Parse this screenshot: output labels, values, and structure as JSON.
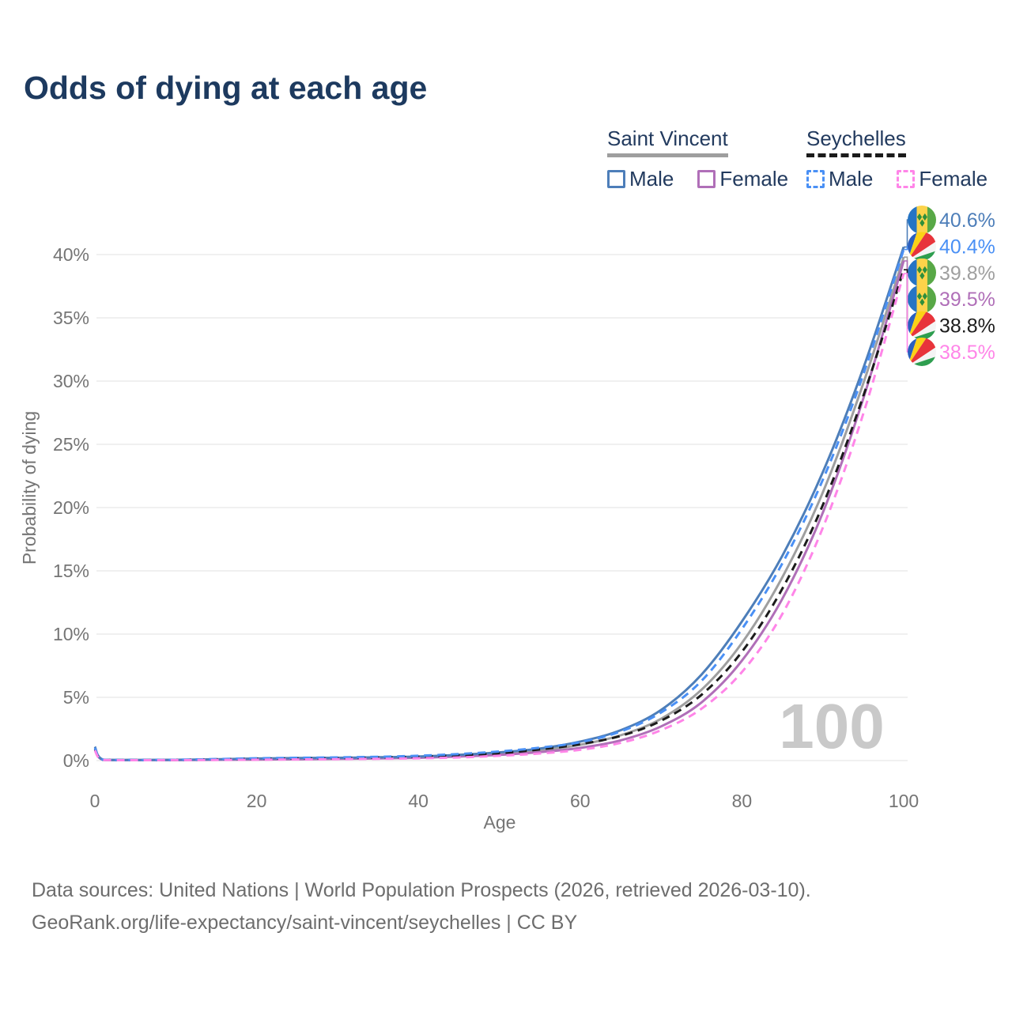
{
  "page": {
    "title": "Odds of dying at each age"
  },
  "legend": {
    "groups": [
      {
        "title": "Saint Vincent",
        "line_style": "solid",
        "line_color": "#9e9e9e",
        "items": [
          {
            "label": "Male",
            "color": "#4d7eb9",
            "style": "solid"
          },
          {
            "label": "Female",
            "color": "#b06fb8",
            "style": "solid"
          }
        ]
      },
      {
        "title": "Seychelles",
        "line_style": "dashed",
        "line_color": "#1b1b1b",
        "items": [
          {
            "label": "Male",
            "color": "#4a90f5",
            "style": "dashed"
          },
          {
            "label": "Female",
            "color": "#ff85e8",
            "style": "dashed"
          }
        ]
      }
    ]
  },
  "chart_data": {
    "type": "line",
    "title": "Odds of dying at each age",
    "xlabel": "Age",
    "ylabel": "Probability of dying",
    "xlim": [
      0,
      100
    ],
    "ylim_pct": [
      0,
      42
    ],
    "grid": "horizontal-only",
    "watermark": "100",
    "x_ticks": [
      "0",
      "20",
      "40",
      "60",
      "80",
      "100"
    ],
    "y_ticks": [
      {
        "pct": 0,
        "label": "0%"
      },
      {
        "pct": 5,
        "label": "5%"
      },
      {
        "pct": 10,
        "label": "10%"
      },
      {
        "pct": 15,
        "label": "15%"
      },
      {
        "pct": 20,
        "label": "20%"
      },
      {
        "pct": 25,
        "label": "25%"
      },
      {
        "pct": 30,
        "label": "30%"
      },
      {
        "pct": 35,
        "label": "35%"
      },
      {
        "pct": 40,
        "label": "40%"
      }
    ],
    "ages": [
      0,
      1,
      5,
      10,
      15,
      20,
      25,
      30,
      35,
      40,
      45,
      50,
      55,
      60,
      65,
      70,
      75,
      80,
      85,
      90,
      95,
      100
    ],
    "series": [
      {
        "id": "sv_all",
        "name": "Saint Vincent (both sexes)",
        "country": "Saint Vincent",
        "flag": "saint-vincent",
        "color": "#9f9f9f",
        "style": "solid",
        "end_label": "39.8%",
        "end_value_pct": 39.8,
        "values_pct": [
          1.0,
          0.07,
          0.04,
          0.05,
          0.08,
          0.12,
          0.15,
          0.18,
          0.22,
          0.28,
          0.4,
          0.55,
          0.8,
          1.25,
          2.0,
          3.3,
          5.6,
          9.3,
          14.5,
          21.2,
          29.8,
          39.8
        ]
      },
      {
        "id": "sv_female",
        "name": "Saint Vincent Female",
        "country": "Saint Vincent",
        "flag": "saint-vincent",
        "color": "#b06fb8",
        "style": "solid",
        "end_label": "39.5%",
        "end_value_pct": 39.5,
        "values_pct": [
          0.9,
          0.06,
          0.04,
          0.04,
          0.06,
          0.08,
          0.1,
          0.13,
          0.17,
          0.22,
          0.32,
          0.45,
          0.67,
          1.0,
          1.6,
          2.7,
          4.6,
          7.9,
          12.8,
          19.6,
          28.6,
          39.5
        ]
      },
      {
        "id": "sv_male",
        "name": "Saint Vincent Male",
        "country": "Saint Vincent",
        "flag": "saint-vincent",
        "color": "#4d7eb9",
        "style": "solid",
        "end_label": "40.6%",
        "end_value_pct": 40.6,
        "values_pct": [
          1.1,
          0.08,
          0.05,
          0.06,
          0.1,
          0.16,
          0.2,
          0.22,
          0.26,
          0.32,
          0.45,
          0.65,
          0.95,
          1.5,
          2.4,
          4.0,
          6.8,
          11.0,
          16.2,
          22.8,
          31.0,
          40.6
        ]
      },
      {
        "id": "sc_all",
        "name": "Seychelles (both sexes)",
        "country": "Seychelles",
        "flag": "seychelles",
        "color": "#1b1b1b",
        "style": "dashed",
        "end_label": "38.8%",
        "end_value_pct": 38.8,
        "values_pct": [
          0.9,
          0.06,
          0.04,
          0.05,
          0.1,
          0.14,
          0.17,
          0.19,
          0.24,
          0.3,
          0.42,
          0.58,
          0.88,
          1.3,
          1.95,
          3.15,
          5.2,
          8.6,
          13.6,
          20.2,
          28.8,
          38.8
        ]
      },
      {
        "id": "sc_male",
        "name": "Seychelles Male",
        "country": "Seychelles",
        "flag": "seychelles",
        "color": "#4a90f5",
        "style": "dashed",
        "end_label": "40.4%",
        "end_value_pct": 40.4,
        "values_pct": [
          1.0,
          0.07,
          0.05,
          0.06,
          0.12,
          0.18,
          0.22,
          0.25,
          0.3,
          0.38,
          0.52,
          0.72,
          1.02,
          1.45,
          2.3,
          3.8,
          6.3,
          10.4,
          15.6,
          22.2,
          30.5,
          40.4
        ]
      },
      {
        "id": "sc_female",
        "name": "Seychelles Female",
        "country": "Seychelles",
        "flag": "seychelles",
        "color": "#ff85e8",
        "style": "dashed",
        "end_label": "38.5%",
        "end_value_pct": 38.5,
        "values_pct": [
          0.8,
          0.05,
          0.03,
          0.04,
          0.05,
          0.07,
          0.09,
          0.11,
          0.14,
          0.18,
          0.25,
          0.38,
          0.56,
          0.85,
          1.4,
          2.4,
          4.1,
          7.0,
          11.6,
          18.4,
          27.4,
          38.5
        ]
      }
    ],
    "flag_colors": {
      "saint-vincent": {
        "blue": "#2574c4",
        "yellow": "#fcd34a",
        "green": "#58a846",
        "diamond": "#2e8f3c"
      },
      "seychelles": {
        "blue": "#2a5fbe",
        "yellow": "#fcd116",
        "red": "#e8343b",
        "white": "#f4f4f4",
        "green": "#2e9e4f"
      }
    }
  },
  "footer": {
    "line1": "Data sources: United Nations | World Population Prospects (2026, retrieved 2026-03-10).",
    "line2": "GeoRank.org/life-expectancy/saint-vincent/seychelles | CC BY"
  }
}
